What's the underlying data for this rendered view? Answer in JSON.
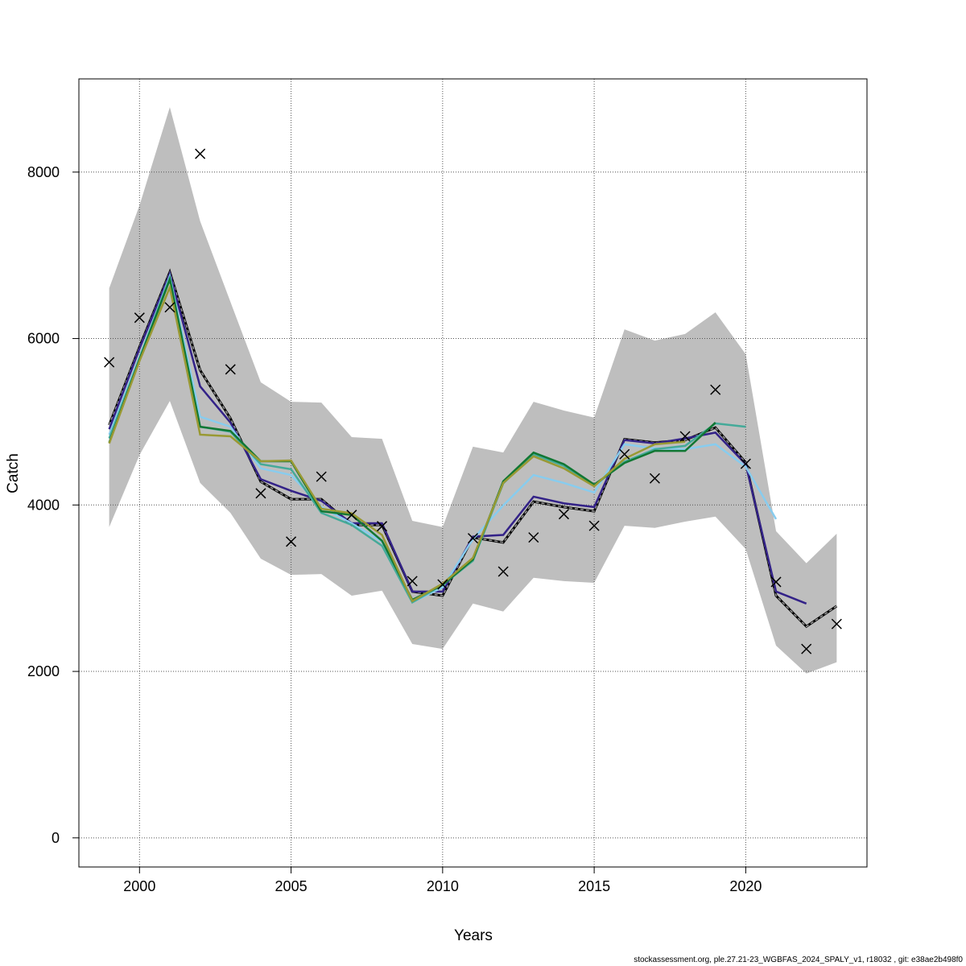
{
  "chart_data": {
    "type": "line",
    "xlabel": "Years",
    "ylabel": "Catch",
    "xlim": [
      1998,
      2024
    ],
    "ylim": [
      -350,
      9120
    ],
    "x_ticks": [
      2000,
      2005,
      2010,
      2015,
      2020
    ],
    "y_ticks": [
      0,
      2000,
      4000,
      6000,
      8000
    ],
    "grid": true,
    "band": {
      "color": "#bebebe",
      "x": [
        1999,
        2000,
        2001,
        2002,
        2003,
        2004,
        2005,
        2006,
        2007,
        2008,
        2009,
        2010,
        2011,
        2012,
        2013,
        2014,
        2015,
        2016,
        2017,
        2018,
        2019,
        2020,
        2021,
        2022,
        2023
      ],
      "upper": [
        6605,
        7600,
        8780,
        7410,
        6440,
        5475,
        5240,
        5230,
        4815,
        4795,
        3810,
        3735,
        4700,
        4630,
        5240,
        5135,
        5050,
        6110,
        5975,
        6055,
        6315,
        5810,
        3685,
        3300,
        3655
      ],
      "lower": [
        3735,
        4600,
        5250,
        4265,
        3905,
        3355,
        3160,
        3170,
        2910,
        2970,
        2330,
        2270,
        2815,
        2720,
        3125,
        3085,
        3065,
        3750,
        3725,
        3800,
        3860,
        3470,
        2310,
        1975,
        2110
      ]
    },
    "observed": {
      "marker": "x",
      "x": [
        1999,
        2000,
        2001,
        2002,
        2003,
        2004,
        2005,
        2006,
        2007,
        2008,
        2009,
        2010,
        2011,
        2012,
        2013,
        2014,
        2015,
        2016,
        2017,
        2018,
        2019,
        2020,
        2021,
        2022,
        2023
      ],
      "y": [
        5715,
        6250,
        6375,
        8220,
        5630,
        4140,
        3560,
        4340,
        3880,
        3745,
        3085,
        3045,
        3600,
        3200,
        3610,
        3890,
        3750,
        4610,
        4320,
        4825,
        5385,
        4495,
        3075,
        2270,
        2570
      ]
    },
    "series": [
      {
        "color": "#000000",
        "dashed": true,
        "start": 1999,
        "values": [
          4960,
          5900,
          6800,
          5620,
          5040,
          4280,
          4070,
          4070,
          3760,
          3760,
          2960,
          2910,
          3610,
          3550,
          4040,
          3975,
          3925,
          4790,
          4750,
          4780,
          4930,
          4510,
          2910,
          2540,
          2785
        ]
      },
      {
        "color": "#332288",
        "start": 1999,
        "values": [
          4910,
          5880,
          6780,
          5425,
          4990,
          4310,
          4170,
          4050,
          3780,
          3780,
          2960,
          2960,
          3620,
          3640,
          4100,
          4020,
          3975,
          4780,
          4740,
          4800,
          4870,
          4490,
          2960,
          2815
        ]
      },
      {
        "color": "#88ccee",
        "start": 1999,
        "values": [
          4845,
          5780,
          6750,
          5060,
          4940,
          4440,
          4360,
          3975,
          3780,
          3560,
          2830,
          3010,
          3590,
          3995,
          4360,
          4265,
          4150,
          4730,
          4680,
          4670,
          4730,
          4460,
          3830
        ]
      },
      {
        "color": "#44aa99",
        "start": 1999,
        "values": [
          4800,
          5760,
          6730,
          4940,
          4880,
          4490,
          4430,
          3905,
          3760,
          3510,
          2830,
          3040,
          3330,
          4260,
          4610,
          4470,
          4230,
          4520,
          4670,
          4710,
          4980,
          4940
        ]
      },
      {
        "color": "#117733",
        "start": 1999,
        "values": [
          4750,
          5750,
          6710,
          4940,
          4890,
          4525,
          4525,
          3925,
          3880,
          3570,
          2860,
          3040,
          3345,
          4285,
          4630,
          4490,
          4245,
          4505,
          4650,
          4650,
          4990
        ]
      },
      {
        "color": "#999933",
        "start": 1999,
        "values": [
          4740,
          5730,
          6615,
          4845,
          4825,
          4525,
          4535,
          3955,
          3900,
          3640,
          2845,
          3055,
          3365,
          4265,
          4585,
          4440,
          4225,
          4555,
          4730,
          4760
        ]
      }
    ]
  },
  "footer": "stockassessment.org, ple.27.21-23_WGBFAS_2024_SPALY_v1, r18032 , git: e38ae2b498f0"
}
